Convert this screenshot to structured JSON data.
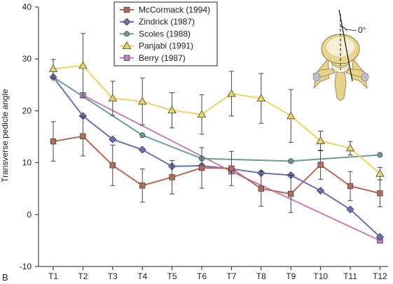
{
  "chart_data": {
    "type": "line",
    "panel_label": "B",
    "ylabel": "Transverse pedicle angle",
    "xlabel": "",
    "ylim": [
      -10,
      40
    ],
    "yticks": [
      -10,
      0,
      10,
      20,
      30,
      40
    ],
    "categories": [
      "T1",
      "T2",
      "T3",
      "T4",
      "T5",
      "T6",
      "T7",
      "T8",
      "T9",
      "T10",
      "T11",
      "T12"
    ],
    "legend_position": "top-center",
    "annotation": "0°",
    "colors": {
      "McCormack (1994)": "#b56a5c",
      "Zindrick (1987)": "#6a6fb8",
      "Scoles (1988)": "#6f9a9a",
      "Panjabi (1991)": "#ecd566",
      "Berry (1987)": "#c77fb8"
    },
    "series": [
      {
        "name": "McCormack (1994)",
        "marker": "square",
        "values": [
          14.1,
          15.1,
          9.5,
          5.6,
          7.2,
          9.0,
          8.9,
          5.0,
          4.0,
          9.6,
          5.5,
          4.1
        ],
        "errors": [
          3.8,
          3.8,
          3.9,
          3.2,
          3.2,
          3.9,
          3.3,
          3.4,
          3.6,
          2.8,
          2.8,
          2.6
        ]
      },
      {
        "name": "Zindrick (1987)",
        "marker": "diamond",
        "values": [
          26.5,
          19.0,
          14.5,
          12.5,
          9.3,
          9.4,
          8.8,
          8.0,
          7.6,
          4.6,
          1.0,
          -4.3
        ],
        "errors": []
      },
      {
        "name": "Scoles (1988)",
        "marker": "circle",
        "values": [
          26.5,
          null,
          null,
          15.3,
          null,
          10.8,
          null,
          null,
          10.3,
          null,
          null,
          11.5
        ],
        "errors": []
      },
      {
        "name": "Panjabi (1991)",
        "marker": "triangle",
        "values": [
          28.1,
          28.7,
          22.4,
          21.8,
          20.1,
          19.3,
          23.3,
          22.4,
          19.0,
          14.2,
          12.8,
          7.9
        ],
        "errors": [
          1.8,
          6.2,
          3.3,
          4.5,
          3.4,
          3.8,
          4.3,
          4.8,
          5.1,
          1.9,
          1.3,
          1.2
        ]
      },
      {
        "name": "Berry (1987)",
        "marker": "square",
        "values": [
          null,
          23.0,
          null,
          null,
          null,
          null,
          8.3,
          null,
          null,
          null,
          null,
          -5.0
        ],
        "errors": []
      }
    ]
  }
}
